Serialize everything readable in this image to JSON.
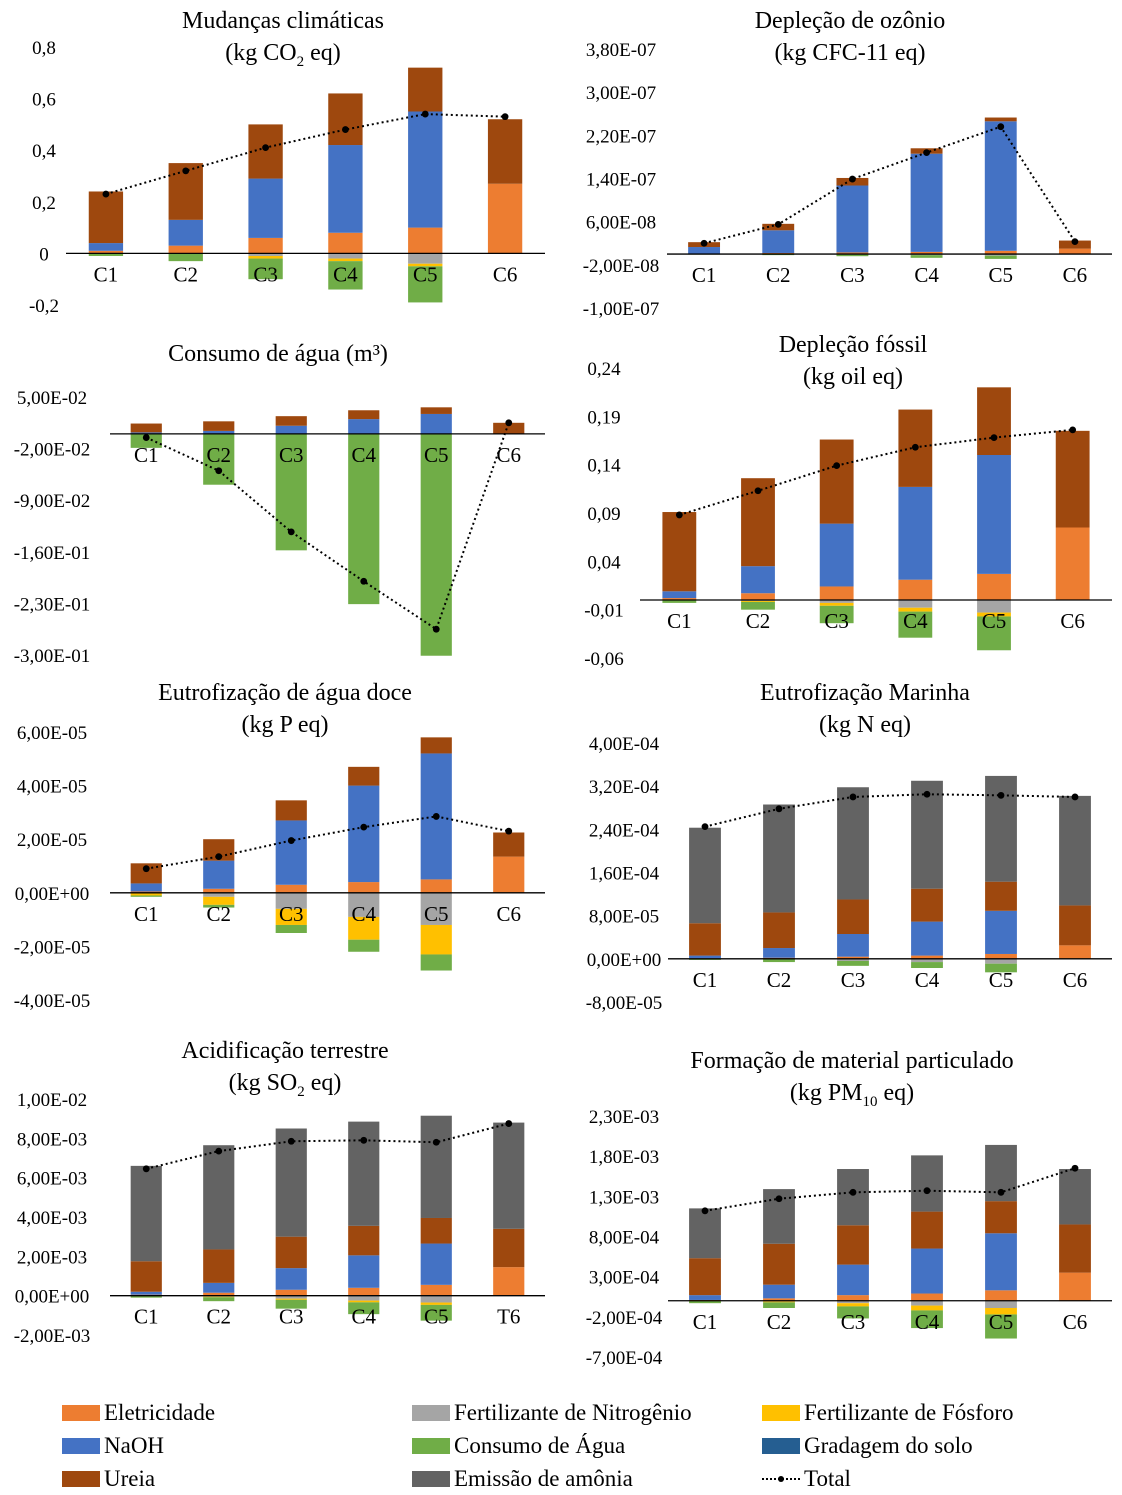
{
  "legend": [
    {
      "key": "eletricidade",
      "label": "Eletricidade",
      "color": "#ED7D31"
    },
    {
      "key": "fert_n",
      "label": "Fertilizante de Nitrogênio",
      "color": "#A5A5A5"
    },
    {
      "key": "fert_p",
      "label": "Fertilizante de Fósforo",
      "color": "#FFC000"
    },
    {
      "key": "naoh",
      "label": "NaOH",
      "color": "#4472C4"
    },
    {
      "key": "agua",
      "label": "Consumo de Água",
      "color": "#70AD47"
    },
    {
      "key": "gradagem",
      "label": "Gradagem do solo",
      "color": "#255E91"
    },
    {
      "key": "ureia",
      "label": "Ureia",
      "color": "#9E480E"
    },
    {
      "key": "amonia",
      "label": "Emissão de amônia",
      "color": "#636363"
    },
    {
      "key": "total",
      "label": "Total",
      "color": "#000000"
    }
  ],
  "chart_data": [
    {
      "type": "bar",
      "title": "Mudanças climáticas",
      "subtitle": [
        "(kg CO",
        "2",
        " eq)"
      ],
      "categories": [
        "C1",
        "C2",
        "C3",
        "C4",
        "C5",
        "C6"
      ],
      "ylim": [
        -0.2,
        0.8
      ],
      "yticks": [
        -0.2,
        0,
        0.2,
        0.4,
        0.6,
        0.8
      ],
      "ytick_labels": [
        "-0,2",
        "0",
        "0,2",
        "0,4",
        "0,6",
        "0,8"
      ],
      "positive_series": [
        {
          "key": "eletricidade",
          "values": [
            0.01,
            0.03,
            0.06,
            0.08,
            0.1,
            0.27
          ]
        },
        {
          "key": "naoh",
          "values": [
            0.03,
            0.1,
            0.23,
            0.34,
            0.45,
            0.0
          ]
        },
        {
          "key": "ureia",
          "values": [
            0.2,
            0.22,
            0.21,
            0.2,
            0.17,
            0.25
          ]
        }
      ],
      "negative_series": [
        {
          "key": "fert_n",
          "values": [
            0.0,
            0.0,
            -0.01,
            -0.02,
            -0.04,
            0.0
          ]
        },
        {
          "key": "fert_p",
          "values": [
            0.0,
            0.0,
            -0.01,
            -0.01,
            -0.01,
            0.0
          ]
        },
        {
          "key": "agua",
          "values": [
            -0.01,
            -0.03,
            -0.08,
            -0.11,
            -0.14,
            0.0
          ]
        }
      ],
      "total": [
        0.23,
        0.32,
        0.41,
        0.48,
        0.54,
        0.53
      ]
    },
    {
      "type": "bar",
      "title": "Depleção de ozônio",
      "subtitle": [
        "(kg CFC-11 eq)"
      ],
      "categories": [
        "C1",
        "C2",
        "C3",
        "C4",
        "C5",
        "C6"
      ],
      "ylim": [
        -1e-07,
        3.8e-07
      ],
      "yticks": [
        -1e-07,
        -2e-08,
        6e-08,
        1.4e-07,
        2.2e-07,
        3e-07,
        3.8e-07
      ],
      "ytick_labels": [
        "-1,00E-07",
        "-2,00E-08",
        "6,00E-08",
        "1,40E-07",
        "2,20E-07",
        "3,00E-07",
        "3,80E-07"
      ],
      "positive_series": [
        {
          "key": "eletricidade",
          "values": [
            1e-09,
            2e-09,
            3e-09,
            4e-09,
            6e-09,
            1e-08
          ]
        },
        {
          "key": "naoh",
          "values": [
            1.2e-08,
            4.2e-08,
            1.24e-07,
            1.82e-07,
            2.4e-07,
            0.0
          ]
        },
        {
          "key": "ureia",
          "values": [
            9e-09,
            1.2e-08,
            1.4e-08,
            1e-08,
            7e-09,
            1.5e-08
          ]
        }
      ],
      "negative_series": [
        {
          "key": "fert_n",
          "values": [
            0.0,
            0.0,
            -1e-09,
            -2e-09,
            -3e-09,
            0.0
          ]
        },
        {
          "key": "agua",
          "values": [
            -1e-09,
            -2e-09,
            -3e-09,
            -5e-09,
            -6e-09,
            0.0
          ]
        }
      ],
      "total": [
        2e-08,
        5.5e-08,
        1.39e-07,
        1.88e-07,
        2.36e-07,
        2.3e-08
      ]
    },
    {
      "type": "bar",
      "title": "Consumo de água (m³)",
      "subtitle": [],
      "categories": [
        "C1",
        "C2",
        "C3",
        "C4",
        "C5",
        "C6"
      ],
      "ylim": [
        -0.3,
        0.05
      ],
      "yticks": [
        -0.3,
        -0.23,
        -0.16,
        -0.09,
        -0.02,
        0.05
      ],
      "ytick_labels": [
        "-3,00E-01",
        "-2,30E-01",
        "-1,60E-01",
        "-9,00E-02",
        "-2,00E-02",
        "5,00E-02"
      ],
      "positive_series": [
        {
          "key": "naoh",
          "values": [
            0.002,
            0.004,
            0.011,
            0.02,
            0.027,
            0.0
          ]
        },
        {
          "key": "ureia",
          "values": [
            0.012,
            0.013,
            0.013,
            0.012,
            0.009,
            0.015
          ]
        }
      ],
      "negative_series": [
        {
          "key": "agua",
          "values": [
            -0.019,
            -0.069,
            -0.158,
            -0.231,
            -0.301,
            0.0
          ]
        }
      ],
      "total": [
        -0.005,
        -0.05,
        -0.133,
        -0.2,
        -0.265,
        0.015
      ]
    },
    {
      "type": "bar",
      "title": "Depleção fóssil",
      "subtitle": [
        "(kg oil eq)"
      ],
      "categories": [
        "C1",
        "C2",
        "C3",
        "C4",
        "C5",
        "C6"
      ],
      "ylim": [
        -0.06,
        0.24
      ],
      "yticks": [
        -0.06,
        -0.01,
        0.04,
        0.09,
        0.14,
        0.19,
        0.24
      ],
      "ytick_labels": [
        "-0,06",
        "-0,01",
        "0,04",
        "0,09",
        "0,14",
        "0,19",
        "0,24"
      ],
      "positive_series": [
        {
          "key": "eletricidade",
          "values": [
            0.002,
            0.007,
            0.014,
            0.021,
            0.027,
            0.075
          ]
        },
        {
          "key": "naoh",
          "values": [
            0.007,
            0.028,
            0.065,
            0.096,
            0.123,
            0.0
          ]
        },
        {
          "key": "ureia",
          "values": [
            0.082,
            0.091,
            0.087,
            0.08,
            0.07,
            0.1
          ]
        }
      ],
      "negative_series": [
        {
          "key": "fert_n",
          "values": [
            0.0,
            -0.001,
            -0.003,
            -0.008,
            -0.013,
            0.0
          ]
        },
        {
          "key": "fert_p",
          "values": [
            0.0,
            -0.001,
            -0.003,
            -0.004,
            -0.004,
            0.0
          ]
        },
        {
          "key": "agua",
          "values": [
            -0.003,
            -0.008,
            -0.018,
            -0.027,
            -0.035,
            0.0
          ]
        }
      ],
      "total": [
        0.088,
        0.113,
        0.139,
        0.158,
        0.168,
        0.176
      ]
    },
    {
      "type": "bar",
      "title": "Eutrofização de água doce",
      "subtitle": [
        "(kg P eq)"
      ],
      "categories": [
        "C1",
        "C2",
        "C3",
        "C4",
        "C5",
        "C6"
      ],
      "ylim": [
        -4e-05,
        6e-05
      ],
      "yticks": [
        -4e-05,
        -2e-05,
        0,
        2e-05,
        4e-05,
        6e-05
      ],
      "ytick_labels": [
        "-4,00E-05",
        "-2,00E-05",
        "0,00E+00",
        "2,00E-05",
        "4,00E-05",
        "6,00E-05"
      ],
      "positive_series": [
        {
          "key": "eletricidade",
          "values": [
            5e-07,
            1.5e-06,
            3e-06,
            4e-06,
            5e-06,
            1.35e-05
          ]
        },
        {
          "key": "naoh",
          "values": [
            3e-06,
            1.05e-05,
            2.4e-05,
            3.6e-05,
            4.7e-05,
            0.0
          ]
        },
        {
          "key": "ureia",
          "values": [
            7.5e-06,
            8e-06,
            7.5e-06,
            7e-06,
            6e-06,
            9e-06
          ]
        }
      ],
      "negative_series": [
        {
          "key": "fert_n",
          "values": [
            0.0,
            -1.5e-06,
            -6e-06,
            -9e-06,
            -1.2e-05,
            0.0
          ]
        },
        {
          "key": "fert_p",
          "values": [
            -1e-06,
            -3e-06,
            -6e-06,
            -8.5e-06,
            -1.1e-05,
            0.0
          ]
        },
        {
          "key": "agua",
          "values": [
            -5e-07,
            -1e-06,
            -3e-06,
            -4.5e-06,
            -6e-06,
            0.0
          ]
        }
      ],
      "total": [
        9e-06,
        1.35e-05,
        1.95e-05,
        2.45e-05,
        2.85e-05,
        2.3e-05
      ]
    },
    {
      "type": "bar",
      "title": "Eutrofização Marinha",
      "subtitle": [
        "(kg N eq)"
      ],
      "categories": [
        "C1",
        "C2",
        "C3",
        "C4",
        "C5",
        "C6"
      ],
      "ylim": [
        -8e-05,
        0.0004
      ],
      "yticks": [
        -8e-05,
        0,
        8e-05,
        0.00016,
        0.00024,
        0.00032,
        0.0004
      ],
      "ytick_labels": [
        "-8,00E-05",
        "0,00E+00",
        "8,00E-05",
        "1,60E-04",
        "2,40E-04",
        "3,20E-04",
        "4,00E-04"
      ],
      "positive_series": [
        {
          "key": "eletricidade",
          "values": [
            1e-06,
            2e-06,
            4e-06,
            6e-06,
            9e-06,
            2.5e-05
          ]
        },
        {
          "key": "naoh",
          "values": [
            5e-06,
            1.8e-05,
            4.2e-05,
            6.3e-05,
            8e-05,
            0.0
          ]
        },
        {
          "key": "ureia",
          "values": [
            6e-05,
            6.6e-05,
            6.4e-05,
            6.1e-05,
            5.4e-05,
            7.4e-05
          ]
        },
        {
          "key": "amonia",
          "values": [
            0.000177,
            0.0002,
            0.000208,
            0.0002,
            0.000196,
            0.000203
          ]
        }
      ],
      "negative_series": [
        {
          "key": "fert_n",
          "values": [
            0.0,
            -1e-06,
            -4e-06,
            -6e-06,
            -9e-06,
            0.0
          ]
        },
        {
          "key": "agua",
          "values": [
            -2e-06,
            -5e-06,
            -9e-06,
            -1.1e-05,
            -1.6e-05,
            0.0
          ]
        }
      ],
      "total": [
        0.000245,
        0.000278,
        0.0003,
        0.000305,
        0.000303,
        0.0003
      ]
    },
    {
      "type": "bar",
      "title": "Acidificação terrestre",
      "subtitle": [
        "(kg SO",
        "2",
        " eq)"
      ],
      "categories": [
        "C1",
        "C2",
        "C3",
        "C4",
        "C5",
        "T6"
      ],
      "ylim": [
        -0.002,
        0.01
      ],
      "yticks": [
        -0.002,
        0,
        0.002,
        0.004,
        0.006,
        0.008,
        0.01
      ],
      "ytick_labels": [
        "-2,00E-03",
        "0,00E+00",
        "2,00E-03",
        "4,00E-03",
        "6,00E-03",
        "8,00E-03",
        "1,00E-02"
      ],
      "positive_series": [
        {
          "key": "eletricidade",
          "values": [
            5e-05,
            0.00015,
            0.0003,
            0.0004,
            0.00055,
            0.00145
          ]
        },
        {
          "key": "naoh",
          "values": [
            0.00015,
            0.0005,
            0.0011,
            0.00165,
            0.0021,
            0.0
          ]
        },
        {
          "key": "ureia",
          "values": [
            0.00155,
            0.0017,
            0.0016,
            0.0015,
            0.0013,
            0.00195
          ]
        },
        {
          "key": "amonia",
          "values": [
            0.00485,
            0.0053,
            0.0055,
            0.0053,
            0.0052,
            0.0054
          ]
        }
      ],
      "negative_series": [
        {
          "key": "fert_n",
          "values": [
            0.0,
            -5e-05,
            -0.00015,
            -0.00025,
            -0.00035,
            0.0
          ]
        },
        {
          "key": "fert_p",
          "values": [
            0.0,
            -3e-05,
            -6e-05,
            -9e-05,
            -0.00012,
            0.0
          ]
        },
        {
          "key": "agua",
          "values": [
            -0.0001,
            -0.0002,
            -0.00045,
            -0.0006,
            -0.0008,
            0.0
          ]
        }
      ],
      "total": [
        0.00645,
        0.00735,
        0.00785,
        0.0079,
        0.0078,
        0.00875
      ]
    },
    {
      "type": "bar",
      "title": "Formação de material particulado",
      "subtitle": [
        "(kg PM",
        "10",
        " eq)"
      ],
      "categories": [
        "C1",
        "C2",
        "C3",
        "C4",
        "C5",
        "C6"
      ],
      "ylim": [
        -0.0007,
        0.0023
      ],
      "yticks": [
        -0.0007,
        -0.0002,
        0.0003,
        0.0008,
        0.0013,
        0.0018,
        0.0023
      ],
      "ytick_labels": [
        "-7,00E-04",
        "-2,00E-04",
        "3,00E-04",
        "8,00E-04",
        "1,30E-03",
        "1,80E-03",
        "2,30E-03"
      ],
      "positive_series": [
        {
          "key": "eletricidade",
          "values": [
            1e-05,
            3e-05,
            7e-05,
            9e-05,
            0.00013,
            0.00035
          ]
        },
        {
          "key": "naoh",
          "values": [
            6e-05,
            0.00017,
            0.00038,
            0.00056,
            0.00071,
            0.0
          ]
        },
        {
          "key": "ureia",
          "values": [
            0.00046,
            0.00051,
            0.00049,
            0.00046,
            0.0004,
            0.0006
          ]
        },
        {
          "key": "amonia",
          "values": [
            0.00062,
            0.00068,
            0.0007,
            0.0007,
            0.0007,
            0.00069
          ]
        }
      ],
      "negative_series": [
        {
          "key": "fert_n",
          "values": [
            0.0,
            -1e-05,
            -3e-05,
            -6e-05,
            -9e-05,
            0.0
          ]
        },
        {
          "key": "fert_p",
          "values": [
            0.0,
            -1e-05,
            -4e-05,
            -6e-05,
            -8e-05,
            0.0
          ]
        },
        {
          "key": "agua",
          "values": [
            -3e-05,
            -7e-05,
            -0.00015,
            -0.00022,
            -0.0003,
            0.0
          ]
        }
      ],
      "total": [
        0.00112,
        0.00127,
        0.00135,
        0.00137,
        0.00135,
        0.00165
      ]
    }
  ]
}
